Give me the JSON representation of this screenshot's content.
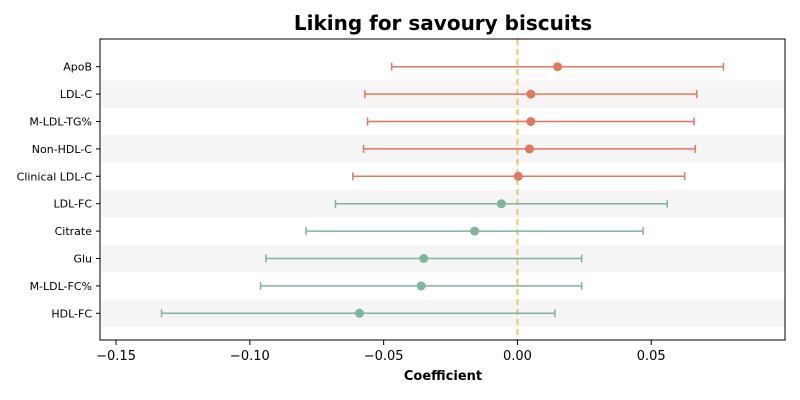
{
  "chart_data": {
    "type": "scatter",
    "title": "Liking for savoury biscuits",
    "xlabel": "Coefficient",
    "ylabel": "",
    "xlim": [
      -0.156,
      0.1
    ],
    "xticks": [
      -0.15,
      -0.1,
      -0.05,
      0.0,
      0.05
    ],
    "xtick_labels": [
      "−0.15",
      "−0.10",
      "−0.05",
      "0.00",
      "0.05"
    ],
    "reference_line": 0.0,
    "grid": false,
    "colors": {
      "positive": "#e0775f",
      "negative": "#7fb59a",
      "reference": "#f2c46e",
      "band": "#f5f5f5"
    },
    "series": [
      {
        "label": "ApoB",
        "estimate": 0.015,
        "lower": -0.047,
        "upper": 0.077
      },
      {
        "label": "LDL-C",
        "estimate": 0.005,
        "lower": -0.057,
        "upper": 0.067
      },
      {
        "label": "M-LDL-TG%",
        "estimate": 0.005,
        "lower": -0.056,
        "upper": 0.066
      },
      {
        "label": "Non-HDL-C",
        "estimate": 0.0045,
        "lower": -0.0575,
        "upper": 0.0665
      },
      {
        "label": "Clinical LDL-C",
        "estimate": 0.0003,
        "lower": -0.0615,
        "upper": 0.0625
      },
      {
        "label": "LDL-FC",
        "estimate": -0.006,
        "lower": -0.068,
        "upper": 0.056
      },
      {
        "label": "Citrate",
        "estimate": -0.016,
        "lower": -0.079,
        "upper": 0.047
      },
      {
        "label": "Glu",
        "estimate": -0.035,
        "lower": -0.094,
        "upper": 0.024
      },
      {
        "label": "M-LDL-FC%",
        "estimate": -0.036,
        "lower": -0.096,
        "upper": 0.024
      },
      {
        "label": "HDL-FC",
        "estimate": -0.059,
        "lower": -0.133,
        "upper": 0.014
      }
    ]
  }
}
